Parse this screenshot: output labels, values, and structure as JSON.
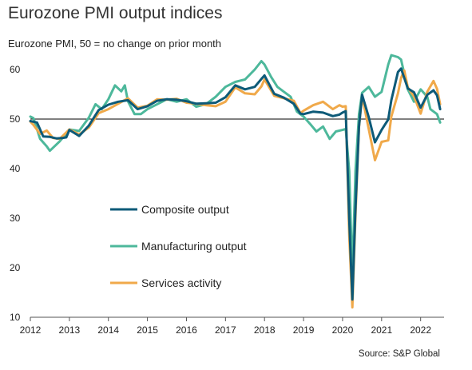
{
  "title": "Eurozone PMI output indices",
  "subtitle": "Eurozone PMI, 50 = no change on prior month",
  "source": "Source: S&P Global",
  "colors": {
    "composite": "#0d5a78",
    "manufacturing": "#4db89b",
    "services": "#f0a94a",
    "reference": "#000000"
  },
  "chart_data": {
    "type": "line",
    "ylim": [
      10,
      65
    ],
    "xlim": [
      2012,
      2022.6
    ],
    "yticks": [
      "10",
      "20",
      "30",
      "40",
      "50",
      "60"
    ],
    "xticks": [
      "2012",
      "2013",
      "2014",
      "2015",
      "2016",
      "2017",
      "2018",
      "2019",
      "2020",
      "2021",
      "2022"
    ],
    "reference_line": 50,
    "grid": false,
    "legend_position": "center-left",
    "series": [
      {
        "name": "Composite output",
        "key": "composite",
        "points": [
          [
            2012.0,
            49.6
          ],
          [
            2012.17,
            49.3
          ],
          [
            2012.33,
            46.5
          ],
          [
            2012.5,
            46.4
          ],
          [
            2012.67,
            46.1
          ],
          [
            2012.83,
            46.2
          ],
          [
            2012.92,
            46.3
          ],
          [
            2013.0,
            47.8
          ],
          [
            2013.25,
            46.6
          ],
          [
            2013.5,
            48.7
          ],
          [
            2013.75,
            51.8
          ],
          [
            2014.0,
            52.9
          ],
          [
            2014.25,
            53.5
          ],
          [
            2014.5,
            53.8
          ],
          [
            2014.75,
            52.0
          ],
          [
            2015.0,
            52.6
          ],
          [
            2015.25,
            53.7
          ],
          [
            2015.5,
            54.0
          ],
          [
            2015.75,
            53.9
          ],
          [
            2016.0,
            53.6
          ],
          [
            2016.25,
            53.1
          ],
          [
            2016.5,
            53.2
          ],
          [
            2016.75,
            53.3
          ],
          [
            2017.0,
            54.4
          ],
          [
            2017.25,
            56.8
          ],
          [
            2017.5,
            56.0
          ],
          [
            2017.75,
            56.5
          ],
          [
            2017.92,
            58.1
          ],
          [
            2018.0,
            58.8
          ],
          [
            2018.25,
            55.1
          ],
          [
            2018.5,
            54.3
          ],
          [
            2018.75,
            53.1
          ],
          [
            2018.92,
            51.1
          ],
          [
            2019.0,
            51.0
          ],
          [
            2019.25,
            51.5
          ],
          [
            2019.5,
            51.3
          ],
          [
            2019.75,
            50.6
          ],
          [
            2019.92,
            50.9
          ],
          [
            2020.0,
            51.3
          ],
          [
            2020.08,
            51.6
          ],
          [
            2020.17,
            29.7
          ],
          [
            2020.25,
            13.6
          ],
          [
            2020.33,
            31.9
          ],
          [
            2020.42,
            48.5
          ],
          [
            2020.5,
            54.9
          ],
          [
            2020.67,
            50.4
          ],
          [
            2020.83,
            45.3
          ],
          [
            2021.0,
            47.8
          ],
          [
            2021.17,
            49.9
          ],
          [
            2021.25,
            53.8
          ],
          [
            2021.42,
            59.5
          ],
          [
            2021.5,
            60.2
          ],
          [
            2021.67,
            56.2
          ],
          [
            2021.83,
            55.4
          ],
          [
            2022.0,
            52.3
          ],
          [
            2022.17,
            54.9
          ],
          [
            2022.33,
            55.8
          ],
          [
            2022.42,
            54.8
          ],
          [
            2022.5,
            52.0
          ]
        ]
      },
      {
        "name": "Manufacturing output",
        "key": "manufacturing",
        "points": [
          [
            2012.0,
            50.5
          ],
          [
            2012.08,
            50.2
          ],
          [
            2012.25,
            46.0
          ],
          [
            2012.42,
            44.5
          ],
          [
            2012.5,
            43.6
          ],
          [
            2012.75,
            45.5
          ],
          [
            2013.0,
            47.9
          ],
          [
            2013.25,
            47.6
          ],
          [
            2013.5,
            50.3
          ],
          [
            2013.67,
            53.0
          ],
          [
            2013.83,
            52.0
          ],
          [
            2014.0,
            54.0
          ],
          [
            2014.17,
            56.8
          ],
          [
            2014.33,
            55.6
          ],
          [
            2014.42,
            56.8
          ],
          [
            2014.5,
            53.6
          ],
          [
            2014.67,
            51.0
          ],
          [
            2014.83,
            51.0
          ],
          [
            2015.0,
            52.0
          ],
          [
            2015.25,
            53.0
          ],
          [
            2015.5,
            54.0
          ],
          [
            2015.75,
            53.5
          ],
          [
            2016.0,
            54.0
          ],
          [
            2016.25,
            52.5
          ],
          [
            2016.5,
            53.0
          ],
          [
            2016.75,
            54.5
          ],
          [
            2017.0,
            56.5
          ],
          [
            2017.25,
            57.5
          ],
          [
            2017.5,
            58.0
          ],
          [
            2017.75,
            60.0
          ],
          [
            2017.92,
            61.7
          ],
          [
            2018.0,
            61.0
          ],
          [
            2018.17,
            58.5
          ],
          [
            2018.33,
            56.5
          ],
          [
            2018.5,
            55.5
          ],
          [
            2018.67,
            54.5
          ],
          [
            2018.83,
            51.5
          ],
          [
            2019.0,
            50.5
          ],
          [
            2019.17,
            49.0
          ],
          [
            2019.33,
            47.5
          ],
          [
            2019.5,
            48.5
          ],
          [
            2019.67,
            46.0
          ],
          [
            2019.83,
            47.5
          ],
          [
            2020.0,
            47.8
          ],
          [
            2020.08,
            48.0
          ],
          [
            2020.17,
            39.5
          ],
          [
            2020.25,
            18.1
          ],
          [
            2020.33,
            39.5
          ],
          [
            2020.42,
            51.0
          ],
          [
            2020.5,
            55.3
          ],
          [
            2020.67,
            56.5
          ],
          [
            2020.83,
            54.5
          ],
          [
            2021.0,
            55.5
          ],
          [
            2021.17,
            61.0
          ],
          [
            2021.25,
            62.9
          ],
          [
            2021.42,
            62.5
          ],
          [
            2021.5,
            62.0
          ],
          [
            2021.67,
            56.0
          ],
          [
            2021.83,
            53.5
          ],
          [
            2022.0,
            56.0
          ],
          [
            2022.17,
            54.5
          ],
          [
            2022.25,
            52.0
          ],
          [
            2022.42,
            51.0
          ],
          [
            2022.5,
            49.3
          ]
        ]
      },
      {
        "name": "Services activity",
        "key": "services",
        "points": [
          [
            2012.0,
            49.5
          ],
          [
            2012.08,
            48.8
          ],
          [
            2012.25,
            47.0
          ],
          [
            2012.42,
            47.7
          ],
          [
            2012.58,
            46.2
          ],
          [
            2012.75,
            46.0
          ],
          [
            2013.0,
            47.9
          ],
          [
            2013.25,
            46.9
          ],
          [
            2013.5,
            48.3
          ],
          [
            2013.75,
            51.2
          ],
          [
            2014.0,
            52.0
          ],
          [
            2014.25,
            53.1
          ],
          [
            2014.5,
            54.2
          ],
          [
            2014.75,
            52.3
          ],
          [
            2015.0,
            52.7
          ],
          [
            2015.25,
            54.0
          ],
          [
            2015.5,
            53.9
          ],
          [
            2015.75,
            54.1
          ],
          [
            2016.0,
            53.3
          ],
          [
            2016.25,
            53.1
          ],
          [
            2016.5,
            52.8
          ],
          [
            2016.75,
            52.6
          ],
          [
            2017.0,
            53.5
          ],
          [
            2017.25,
            56.4
          ],
          [
            2017.5,
            55.2
          ],
          [
            2017.75,
            55.0
          ],
          [
            2017.92,
            56.6
          ],
          [
            2018.0,
            58.0
          ],
          [
            2018.25,
            54.7
          ],
          [
            2018.5,
            54.2
          ],
          [
            2018.75,
            53.7
          ],
          [
            2018.92,
            51.2
          ],
          [
            2019.0,
            51.7
          ],
          [
            2019.25,
            52.8
          ],
          [
            2019.5,
            53.5
          ],
          [
            2019.75,
            52.0
          ],
          [
            2019.92,
            52.8
          ],
          [
            2020.0,
            52.5
          ],
          [
            2020.08,
            52.6
          ],
          [
            2020.17,
            26.4
          ],
          [
            2020.25,
            12.0
          ],
          [
            2020.33,
            30.5
          ],
          [
            2020.42,
            48.3
          ],
          [
            2020.5,
            54.7
          ],
          [
            2020.67,
            48.0
          ],
          [
            2020.83,
            41.7
          ],
          [
            2021.0,
            45.4
          ],
          [
            2021.17,
            45.7
          ],
          [
            2021.25,
            50.5
          ],
          [
            2021.42,
            55.2
          ],
          [
            2021.5,
            58.3
          ],
          [
            2021.58,
            59.8
          ],
          [
            2021.67,
            56.4
          ],
          [
            2021.83,
            54.6
          ],
          [
            2022.0,
            51.1
          ],
          [
            2022.17,
            55.5
          ],
          [
            2022.33,
            57.7
          ],
          [
            2022.42,
            56.1
          ],
          [
            2022.5,
            53.0
          ]
        ]
      }
    ]
  }
}
